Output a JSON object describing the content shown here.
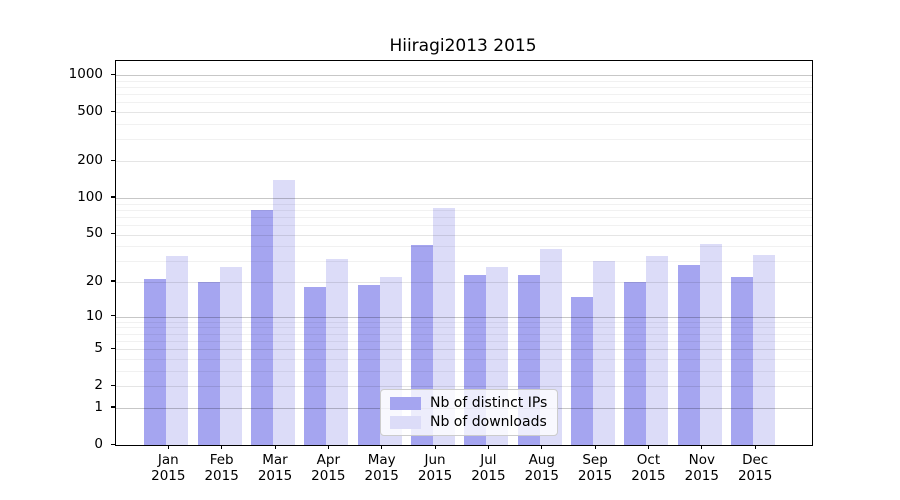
{
  "title": "Hiiragi2013 2015",
  "chart_data": {
    "type": "bar",
    "title": "Hiiragi2013 2015",
    "xlabel": "",
    "ylabel": "",
    "categories": [
      "Jan 2015",
      "Feb 2015",
      "Mar 2015",
      "Apr 2015",
      "May 2015",
      "Jun 2015",
      "Jul 2015",
      "Aug 2015",
      "Sep 2015",
      "Oct 2015",
      "Nov 2015",
      "Dec 2015"
    ],
    "x_tick_lines": [
      {
        "month": "Jan",
        "year": "2015"
      },
      {
        "month": "Feb",
        "year": "2015"
      },
      {
        "month": "Mar",
        "year": "2015"
      },
      {
        "month": "Apr",
        "year": "2015"
      },
      {
        "month": "May",
        "year": "2015"
      },
      {
        "month": "Jun",
        "year": "2015"
      },
      {
        "month": "Jul",
        "year": "2015"
      },
      {
        "month": "Aug",
        "year": "2015"
      },
      {
        "month": "Sep",
        "year": "2015"
      },
      {
        "month": "Oct",
        "year": "2015"
      },
      {
        "month": "Nov",
        "year": "2015"
      },
      {
        "month": "Dec",
        "year": "2015"
      }
    ],
    "series": [
      {
        "name": "Nb of distinct IPs",
        "color": "#a5a5f0",
        "values": [
          21,
          20,
          80,
          18,
          19,
          41,
          23,
          23,
          15,
          20,
          28,
          22
        ]
      },
      {
        "name": "Nb of downloads",
        "color": "#dcdcf8",
        "values": [
          33,
          27,
          140,
          31,
          22,
          83,
          27,
          38,
          30,
          33,
          42,
          34
        ]
      }
    ],
    "y_scale": "log10(value+1)",
    "y_major_ticks": [
      0,
      1,
      2,
      5,
      10,
      20,
      50,
      100,
      200,
      500,
      1000
    ],
    "y_decade_ticks": [
      1,
      10,
      100,
      1000
    ],
    "y_minor_ticks": [
      3,
      4,
      6,
      7,
      8,
      9,
      30,
      40,
      60,
      70,
      80,
      90,
      300,
      400,
      600,
      700,
      800,
      900
    ],
    "ylim": [
      0,
      1300
    ],
    "grid": true,
    "legend_position": "lower center"
  },
  "legend": {
    "items": [
      {
        "label": "Nb of distinct IPs",
        "color": "#a5a5f0"
      },
      {
        "label": "Nb of downloads",
        "color": "#dcdcf8"
      }
    ]
  },
  "colors": {
    "background": "#ffffff",
    "bar_distinct_ips": "#a5a5f0",
    "bar_downloads": "#dcdcf8",
    "spine": "#000000",
    "grid_decade": "#c7c7c7",
    "grid_minor": "#ededed"
  }
}
